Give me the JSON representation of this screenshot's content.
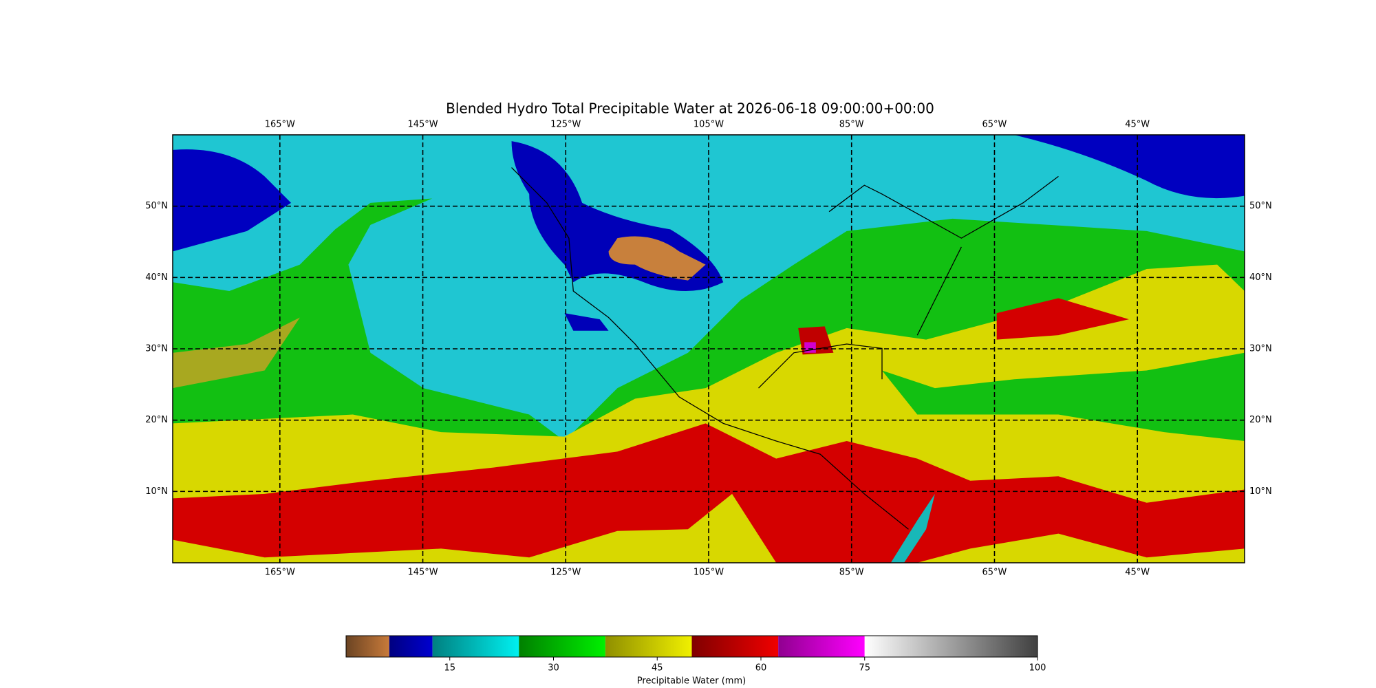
{
  "title": "Blended Hydro Total Precipitable Water at 2026-06-18 09:00:00+00:00",
  "map": {
    "lonlim": [
      -180,
      -30
    ],
    "latlim": [
      0,
      60
    ],
    "lon_ticks": [
      {
        "value": -165,
        "label": "165°W"
      },
      {
        "value": -145,
        "label": "145°W"
      },
      {
        "value": -125,
        "label": "125°W"
      },
      {
        "value": -105,
        "label": "105°W"
      },
      {
        "value": -85,
        "label": "85°W"
      },
      {
        "value": -65,
        "label": "65°W"
      },
      {
        "value": -45,
        "label": "45°W"
      }
    ],
    "lat_ticks": [
      {
        "value": 10,
        "label": "10°N"
      },
      {
        "value": 20,
        "label": "20°N"
      },
      {
        "value": 30,
        "label": "30°N"
      },
      {
        "value": 40,
        "label": "40°N"
      },
      {
        "value": 50,
        "label": "50°N"
      }
    ]
  },
  "colorbar": {
    "label": "Precipitable Water (mm)",
    "lim": [
      0,
      100
    ],
    "ticks": [
      15,
      30,
      45,
      60,
      75,
      100
    ],
    "segments": [
      {
        "from": 0,
        "to": 6.25,
        "colors": [
          "#6b4423",
          "#c87a3a"
        ]
      },
      {
        "from": 6.25,
        "to": 12.5,
        "colors": [
          "#000080",
          "#0000d0"
        ]
      },
      {
        "from": 12.5,
        "to": 25,
        "colors": [
          "#008080",
          "#00f0f0"
        ]
      },
      {
        "from": 25,
        "to": 37.5,
        "colors": [
          "#008000",
          "#00f000"
        ]
      },
      {
        "from": 37.5,
        "to": 50,
        "colors": [
          "#8f8f00",
          "#f0f000"
        ]
      },
      {
        "from": 50,
        "to": 62.5,
        "colors": [
          "#800000",
          "#f00000"
        ]
      },
      {
        "from": 62.5,
        "to": 75,
        "colors": [
          "#900090",
          "#ff00ff"
        ]
      },
      {
        "from": 75,
        "to": 100,
        "colors": [
          "#ffffff",
          "#404040"
        ]
      }
    ]
  }
}
